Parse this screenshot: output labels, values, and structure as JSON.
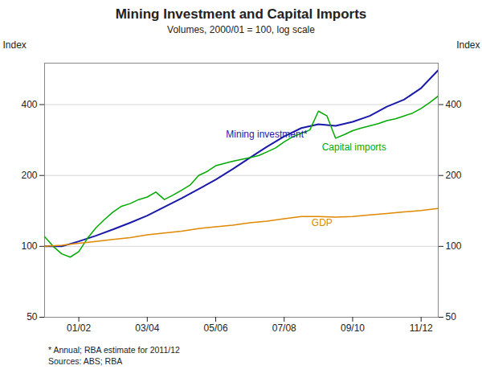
{
  "chart_data": {
    "type": "line",
    "title": "Mining Investment and Capital Imports",
    "subtitle": "Volumes, 2000/01 = 100, log scale",
    "ylabel": "Index",
    "y2label": "Index",
    "log": "y",
    "grid": true,
    "xlim": [
      2000.5,
      2012.0
    ],
    "xticks": [
      {
        "value": 2001.5,
        "label": "01/02"
      },
      {
        "value": 2003.5,
        "label": "03/04"
      },
      {
        "value": 2005.5,
        "label": "05/06"
      },
      {
        "value": 2007.5,
        "label": "07/08"
      },
      {
        "value": 2009.5,
        "label": "09/10"
      },
      {
        "value": 2011.5,
        "label": "11/12"
      }
    ],
    "ylim": [
      50,
      600
    ],
    "yticks": [
      50,
      100,
      200,
      400
    ],
    "y2lim": [
      50,
      600
    ],
    "y2ticks": [
      50,
      100,
      200,
      400
    ],
    "series": [
      {
        "name": "Mining investment*",
        "color": "#1a1aaa",
        "x": [
          2000.5,
          2001.0,
          2001.5,
          2002.0,
          2002.5,
          2003.0,
          2003.5,
          2004.0,
          2004.5,
          2005.0,
          2005.5,
          2006.0,
          2006.5,
          2007.0,
          2007.5,
          2008.0,
          2008.5,
          2009.0,
          2009.5,
          2010.0,
          2010.5,
          2011.0,
          2011.5,
          2012.0
        ],
        "values": [
          100,
          100,
          105,
          111,
          118,
          126,
          135,
          147,
          160,
          175,
          192,
          213,
          238,
          265,
          293,
          318,
          330,
          325,
          338,
          358,
          392,
          420,
          470,
          560
        ]
      },
      {
        "name": "Capital imports",
        "color": "#00aa00",
        "x": [
          2000.5,
          2000.75,
          2001.0,
          2001.25,
          2001.5,
          2001.75,
          2002.0,
          2002.25,
          2002.5,
          2002.75,
          2003.0,
          2003.25,
          2003.5,
          2003.75,
          2004.0,
          2004.25,
          2004.5,
          2004.75,
          2005.0,
          2005.25,
          2005.5,
          2005.75,
          2006.0,
          2006.25,
          2006.5,
          2006.75,
          2007.0,
          2007.25,
          2007.5,
          2007.75,
          2008.0,
          2008.25,
          2008.5,
          2008.75,
          2009.0,
          2009.25,
          2009.5,
          2009.75,
          2010.0,
          2010.25,
          2010.5,
          2010.75,
          2011.0,
          2011.25,
          2011.5,
          2011.75,
          2012.0
        ],
        "values": [
          110,
          100,
          93,
          90,
          95,
          108,
          120,
          130,
          140,
          148,
          152,
          158,
          162,
          170,
          158,
          165,
          173,
          182,
          200,
          208,
          220,
          225,
          230,
          234,
          238,
          243,
          252,
          262,
          278,
          292,
          302,
          312,
          375,
          358,
          288,
          298,
          310,
          318,
          325,
          332,
          342,
          348,
          358,
          368,
          385,
          408,
          435
        ]
      },
      {
        "name": "GDP",
        "color": "#e08800",
        "x": [
          2000.5,
          2001.0,
          2001.5,
          2002.0,
          2002.5,
          2003.0,
          2003.5,
          2004.0,
          2004.5,
          2005.0,
          2005.5,
          2006.0,
          2006.5,
          2007.0,
          2007.5,
          2008.0,
          2008.5,
          2009.0,
          2009.5,
          2010.0,
          2010.5,
          2011.0,
          2011.5,
          2012.0
        ],
        "values": [
          100,
          101,
          103,
          105,
          107,
          109,
          112,
          114,
          116,
          119,
          121,
          123,
          126,
          128,
          131,
          134,
          134,
          133,
          134,
          136,
          138,
          140,
          142,
          145
        ]
      }
    ],
    "annotations": [
      {
        "text": "Mining investment*",
        "x": 2005.8,
        "y": 290,
        "color": "#1a1aaa"
      },
      {
        "text": "Capital imports",
        "x": 2008.6,
        "y": 255,
        "color": "#00aa00"
      },
      {
        "text": "GDP",
        "x": 2008.3,
        "y": 122,
        "color": "#e08800"
      }
    ],
    "notes": [
      "*    Annual; RBA estimate for 2011/12",
      "Sources: ABS; RBA"
    ]
  }
}
